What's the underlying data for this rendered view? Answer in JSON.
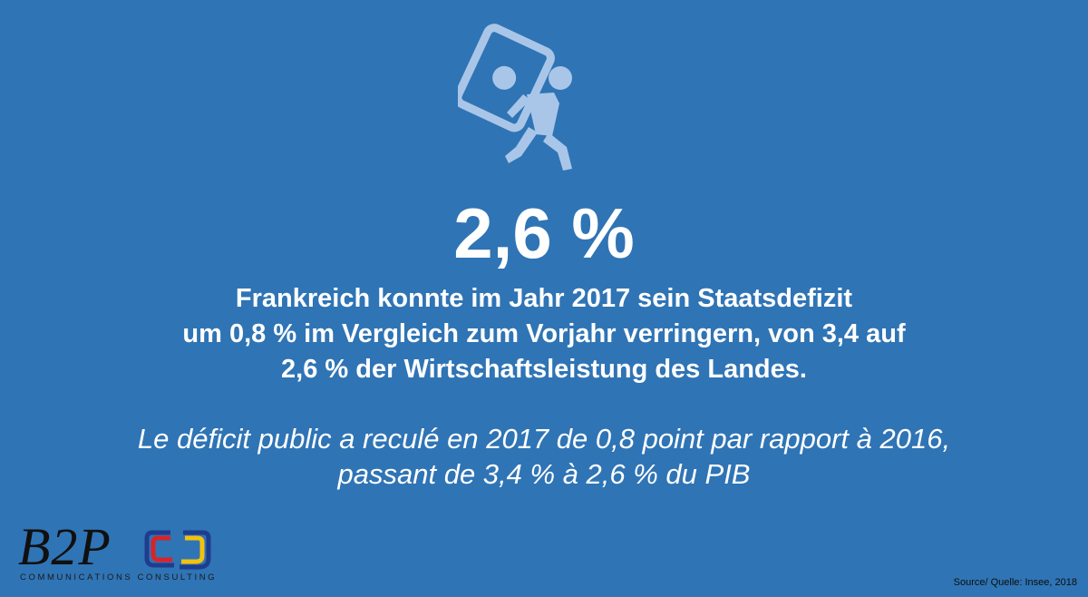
{
  "icon": {
    "name": "person-carrying-money-icon",
    "color": "#a9c6e8"
  },
  "headline": {
    "value": "2,6 %"
  },
  "german": {
    "lines": [
      "Frankreich konnte im Jahr 2017 sein Staatsdefizit",
      "um 0,8 % im Vergleich zum Vorjahr verringern, von 3,4 auf",
      "2,6 % der Wirtschaftsleistung des Landes."
    ]
  },
  "french": {
    "lines": [
      "Le déficit public a reculé en 2017 de 0,8 point par rapport à 2016,",
      "passant de 3,4 % à 2,6 % du PIB"
    ]
  },
  "logo": {
    "name": "B2P",
    "tagline": "COMMUNICATIONS CONSULTING",
    "colors": [
      "#1f3d8f",
      "#d8232a",
      "#f4c20d"
    ]
  },
  "source": {
    "text": "Source/ Quelle: Insee, 2018"
  },
  "background_color": "#2f74b5"
}
